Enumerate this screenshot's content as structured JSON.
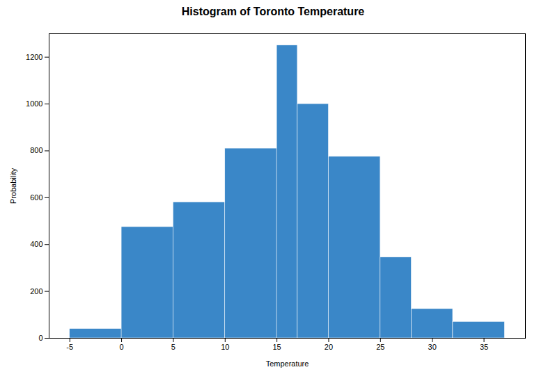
{
  "chart_data": {
    "type": "histogram",
    "title": "Histogram of Toronto Temperature",
    "xlabel": "Temperature",
    "ylabel": "Probability",
    "bins": [
      -5,
      0,
      5,
      10,
      15,
      17,
      20,
      25,
      28,
      32,
      37
    ],
    "values": [
      40,
      475,
      580,
      810,
      1250,
      1000,
      775,
      345,
      125,
      70
    ],
    "color": "#3a87c8",
    "xlim": [
      -7,
      39
    ],
    "ylim": [
      0,
      1300
    ],
    "xticks": [
      -5,
      0,
      5,
      10,
      15,
      20,
      25,
      30,
      35
    ],
    "yticks": [
      0,
      200,
      400,
      600,
      800,
      1000,
      1200
    ]
  }
}
